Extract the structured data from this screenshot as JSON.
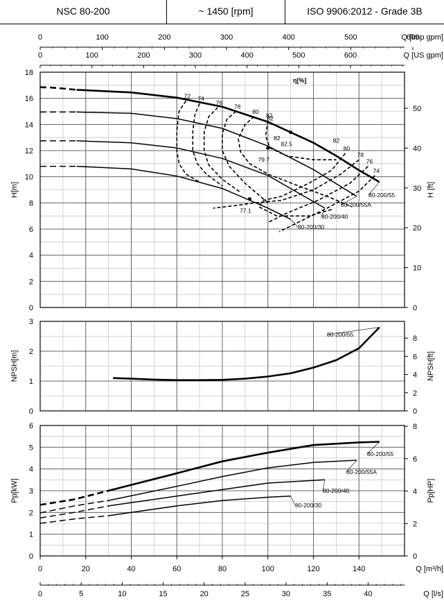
{
  "header": {
    "model": "NSC 80-200",
    "speed": "~ 1450 [rpm]",
    "standard": "ISO 9906:2012 - Grade 3B"
  },
  "chart_data": [
    {
      "type": "line",
      "name": "head",
      "top_axes": [
        {
          "label": "Q [Imp gpm]",
          "ticks": [
            0,
            100,
            200,
            300,
            400,
            500,
            600
          ],
          "per_m3h": 3.6662
        },
        {
          "label": "Q [US gpm]",
          "ticks": [
            0,
            100,
            200,
            300,
            400,
            500,
            600
          ],
          "per_m3h": 4.4029
        }
      ],
      "ylabel": "H[m]",
      "ylim": [
        0,
        18
      ],
      "yticks": [
        0,
        2,
        4,
        6,
        8,
        10,
        12,
        14,
        16,
        18
      ],
      "ylabel_right": "H [ft]",
      "yticks_right": [
        0,
        10,
        20,
        30,
        40,
        50
      ],
      "grid": true,
      "series": [
        {
          "name": "80-200/55",
          "dashed_x": [
            0,
            5,
            10,
            16
          ],
          "dashed_y": [
            16.85,
            16.82,
            16.75,
            16.65
          ],
          "x": [
            16,
            40,
            60,
            80,
            100,
            120,
            130,
            140,
            149
          ],
          "y": [
            16.65,
            16.45,
            16.05,
            15.35,
            14.2,
            12.6,
            11.6,
            10.5,
            9.6
          ]
        },
        {
          "name": "80-200/55A",
          "dashed_x": [
            0,
            5,
            10,
            16
          ],
          "dashed_y": [
            14.95,
            14.95,
            14.95,
            14.95
          ],
          "x": [
            16,
            40,
            60,
            80,
            100,
            120,
            139
          ],
          "y": [
            14.95,
            14.85,
            14.45,
            13.7,
            12.35,
            10.55,
            8.5
          ]
        },
        {
          "name": "80-200/40",
          "dashed_x": [
            0,
            5,
            10,
            16
          ],
          "dashed_y": [
            12.75,
            12.75,
            12.75,
            12.75
          ],
          "x": [
            16,
            40,
            60,
            80,
            100,
            125
          ],
          "y": [
            12.75,
            12.6,
            12.2,
            11.4,
            10.1,
            7.6
          ]
        },
        {
          "name": "80-200/30",
          "dashed_x": [
            0,
            5,
            10,
            16
          ],
          "dashed_y": [
            10.8,
            10.8,
            10.8,
            10.8
          ],
          "x": [
            16,
            40,
            60,
            80,
            100,
            110
          ],
          "y": [
            10.8,
            10.6,
            10.05,
            9.1,
            7.6,
            6.75
          ]
        }
      ],
      "efficiency_label": "η[%]",
      "efficiency_contours": [
        {
          "label": "72",
          "x": [
            64,
            61,
            60,
            60,
            61,
            64,
            70
          ],
          "y": [
            15.8,
            15.0,
            13.5,
            12.0,
            11.0,
            10.2,
            9.6
          ]
        },
        {
          "label": "74",
          "x": [
            70,
            68,
            67,
            67,
            69,
            73,
            80
          ],
          "y": [
            15.6,
            14.8,
            13.5,
            12.0,
            11.0,
            10.2,
            9.3
          ]
        },
        {
          "label": "76",
          "x": [
            78,
            74,
            72,
            72,
            74,
            80,
            88
          ],
          "y": [
            15.3,
            14.6,
            13.4,
            12.0,
            10.9,
            9.8,
            8.8
          ]
        },
        {
          "label": "78",
          "x": [
            86,
            82,
            80,
            80,
            83,
            90,
            100
          ],
          "y": [
            15.0,
            14.4,
            13.3,
            12.0,
            10.8,
            9.5,
            8.0
          ]
        },
        {
          "label": "80",
          "x": [
            94,
            90,
            87,
            88,
            92,
            100,
            112,
            126,
            137
          ],
          "y": [
            14.6,
            14.0,
            12.9,
            11.9,
            11.0,
            10.2,
            9.4,
            8.5,
            7.7
          ]
        },
        {
          "label": "82",
          "x": [
            100,
            99,
            101,
            108,
            120,
            130
          ],
          "y": [
            14.3,
            13.1,
            12.2,
            11.6,
            11.3,
            11.3
          ]
        },
        {
          "label": "80",
          "x": [
            134,
            128,
            118,
            106,
            98,
            96,
            104,
            118,
            128
          ],
          "y": [
            11.8,
            10.5,
            9.5,
            8.5,
            8.2,
            7.7,
            7.0,
            7.0,
            7.5
          ]
        },
        {
          "label": "78",
          "x": [
            140,
            132,
            120,
            106,
            94,
            86,
            76
          ],
          "y": [
            11.3,
            10.2,
            9.0,
            8.2,
            8.0,
            7.8,
            7.6
          ]
        },
        {
          "label": "76",
          "x": [
            144,
            136,
            122,
            108,
            100
          ],
          "y": [
            10.8,
            9.5,
            8.2,
            7.2,
            6.5
          ]
        },
        {
          "label": "74",
          "x": [
            147,
            140,
            126,
            112,
            105
          ],
          "y": [
            10.1,
            8.9,
            7.6,
            6.4,
            5.8
          ]
        }
      ],
      "bep_points": [
        {
          "x": 110,
          "y": 13.4,
          "label": "82.5"
        },
        {
          "x": 100,
          "y": 12.2,
          "label": "79.7"
        },
        {
          "x": 92,
          "y": 8.3,
          "label": "77.1"
        }
      ],
      "extra_labels": [
        {
          "x": 101,
          "y": 14.3,
          "label": "82"
        },
        {
          "x": 130,
          "y": 12.6,
          "label": "82"
        },
        {
          "x": 104,
          "y": 12.8,
          "label": "82"
        }
      ]
    },
    {
      "type": "line",
      "name": "npsh",
      "ylabel": "NPSH[m]",
      "ylim": [
        0,
        3
      ],
      "yticks": [
        0,
        1,
        2,
        3
      ],
      "ylabel_right": "NPSH[ft]",
      "yticks_right": [
        0,
        2,
        4,
        6,
        8
      ],
      "grid": true,
      "series": [
        {
          "name": "80-200/55",
          "x": [
            32,
            40,
            50,
            60,
            70,
            80,
            90,
            100,
            110,
            120,
            130,
            140,
            149
          ],
          "y": [
            1.1,
            1.08,
            1.05,
            1.03,
            1.03,
            1.04,
            1.08,
            1.15,
            1.26,
            1.45,
            1.7,
            2.1,
            2.8
          ]
        }
      ]
    },
    {
      "type": "line",
      "name": "power",
      "ylabel": "Pp[kW]",
      "ylim": [
        0,
        6
      ],
      "yticks": [
        0,
        1,
        2,
        3,
        4,
        5,
        6
      ],
      "ylabel_right": "Pp[HP]",
      "yticks_right": [
        0,
        2,
        4,
        6,
        8
      ],
      "xlabel": "Q [m³/h]",
      "xlim": [
        0,
        160
      ],
      "xticks": [
        0,
        20,
        40,
        60,
        80,
        100,
        120,
        140
      ],
      "xlabel_lps": "Q [l/s]",
      "xticks_lps": [
        0,
        5,
        10,
        15,
        20,
        25,
        30,
        35,
        40
      ],
      "grid": true,
      "series": [
        {
          "name": "80-200/55",
          "dashed_x": [
            0,
            15,
            30
          ],
          "dashed_y": [
            2.35,
            2.6,
            3.0
          ],
          "x": [
            30,
            60,
            80,
            100,
            120,
            140,
            149
          ],
          "y": [
            3.0,
            3.8,
            4.35,
            4.75,
            5.1,
            5.22,
            5.25
          ]
        },
        {
          "name": "80-200/55A",
          "dashed_x": [
            0,
            15,
            30
          ],
          "dashed_y": [
            1.98,
            2.3,
            2.55
          ],
          "x": [
            30,
            60,
            80,
            100,
            120,
            139
          ],
          "y": [
            2.55,
            3.2,
            3.65,
            4.05,
            4.3,
            4.4
          ]
        },
        {
          "name": "80-200/40",
          "dashed_x": [
            0,
            15,
            30
          ],
          "dashed_y": [
            1.75,
            2.0,
            2.3
          ],
          "x": [
            30,
            60,
            80,
            100,
            125
          ],
          "y": [
            2.3,
            2.75,
            3.05,
            3.35,
            3.5
          ]
        },
        {
          "name": "80-200/30",
          "dashed_x": [
            0,
            15,
            30
          ],
          "dashed_y": [
            1.5,
            1.7,
            1.85
          ],
          "x": [
            30,
            60,
            80,
            100,
            110
          ],
          "y": [
            1.85,
            2.3,
            2.55,
            2.7,
            2.75
          ]
        }
      ]
    }
  ]
}
